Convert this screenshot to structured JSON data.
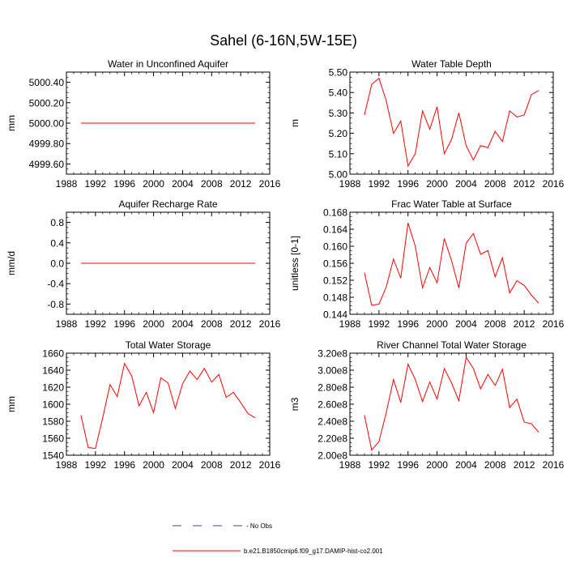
{
  "figure": {
    "title": "Sahel (6-16N,5W-15E)"
  },
  "legend": {
    "items": [
      {
        "label": "- No Obs",
        "style": "dashed",
        "color": "#4b3f8f"
      },
      {
        "label": "b.e21.B1850cmip6.f09_g17.DAMIP-hist-co2.001",
        "style": "solid",
        "color": "#ff0000"
      }
    ]
  },
  "chart_data": [
    {
      "type": "line",
      "title": "Water in Unconfined Aquifer",
      "xlabel": "",
      "ylabel": "mm",
      "xlim": [
        1988,
        2016
      ],
      "ylim": [
        4999.5,
        5000.5
      ],
      "xticks": [
        "1988",
        "1992",
        "1996",
        "2000",
        "2004",
        "2008",
        "2012",
        "2016"
      ],
      "yticks": [
        {
          "v": 5000.4,
          "label": "5000.40"
        },
        {
          "v": 5000.2,
          "label": "5000.20"
        },
        {
          "v": 5000.0,
          "label": "5000.00"
        },
        {
          "v": 4999.8,
          "label": "4999.80"
        },
        {
          "v": 4999.6,
          "label": "4999.60"
        }
      ],
      "series": [
        {
          "color": "#ff0000",
          "x": [
            1990,
            1991,
            1992,
            1993,
            1994,
            1995,
            1996,
            1997,
            1998,
            1999,
            2000,
            2001,
            2002,
            2003,
            2004,
            2005,
            2006,
            2007,
            2008,
            2009,
            2010,
            2011,
            2012,
            2013,
            2014
          ],
          "values": [
            5000,
            5000,
            5000,
            5000,
            5000,
            5000,
            5000,
            5000,
            5000,
            5000,
            5000,
            5000,
            5000,
            5000,
            5000,
            5000,
            5000,
            5000,
            5000,
            5000,
            5000,
            5000,
            5000,
            5000,
            5000
          ]
        }
      ]
    },
    {
      "type": "line",
      "title": "Water Table Depth",
      "xlabel": "",
      "ylabel": "m",
      "xlim": [
        1988,
        2016
      ],
      "ylim": [
        5.0,
        5.5
      ],
      "xticks": [
        "1988",
        "1992",
        "1996",
        "2000",
        "2004",
        "2008",
        "2012",
        "2016"
      ],
      "yticks": [
        {
          "v": 5.5,
          "label": "5.50"
        },
        {
          "v": 5.4,
          "label": "5.40"
        },
        {
          "v": 5.3,
          "label": "5.30"
        },
        {
          "v": 5.2,
          "label": "5.20"
        },
        {
          "v": 5.1,
          "label": "5.10"
        },
        {
          "v": 5.0,
          "label": "5.00"
        }
      ],
      "series": [
        {
          "color": "#ff0000",
          "x": [
            1990,
            1991,
            1992,
            1993,
            1994,
            1995,
            1996,
            1997,
            1998,
            1999,
            2000,
            2001,
            2002,
            2003,
            2004,
            2005,
            2006,
            2007,
            2008,
            2009,
            2010,
            2011,
            2012,
            2013,
            2014
          ],
          "values": [
            5.29,
            5.44,
            5.47,
            5.36,
            5.2,
            5.26,
            5.04,
            5.1,
            5.31,
            5.22,
            5.33,
            5.1,
            5.17,
            5.3,
            5.14,
            5.07,
            5.14,
            5.13,
            5.21,
            5.16,
            5.31,
            5.28,
            5.29,
            5.39,
            5.41
          ]
        }
      ]
    },
    {
      "type": "line",
      "title": "Aquifer Recharge Rate",
      "xlabel": "",
      "ylabel": "mm/d",
      "xlim": [
        1988,
        2016
      ],
      "ylim": [
        -1.0,
        1.0
      ],
      "xticks": [
        "1988",
        "1992",
        "1996",
        "2000",
        "2004",
        "2008",
        "2012",
        "2016"
      ],
      "yticks": [
        {
          "v": 0.8,
          "label": "0.8"
        },
        {
          "v": 0.4,
          "label": "0.4"
        },
        {
          "v": 0.0,
          "label": "0.0"
        },
        {
          "v": -0.4,
          "label": "-0.4"
        },
        {
          "v": -0.8,
          "label": "-0.8"
        }
      ],
      "series": [
        {
          "color": "#ff0000",
          "x": [
            1990,
            1991,
            1992,
            1993,
            1994,
            1995,
            1996,
            1997,
            1998,
            1999,
            2000,
            2001,
            2002,
            2003,
            2004,
            2005,
            2006,
            2007,
            2008,
            2009,
            2010,
            2011,
            2012,
            2013,
            2014
          ],
          "values": [
            0,
            0,
            0,
            0,
            0,
            0,
            0,
            0,
            0,
            0,
            0,
            0,
            0,
            0,
            0,
            0,
            0,
            0,
            0,
            0,
            0,
            0,
            0,
            0,
            0
          ]
        }
      ]
    },
    {
      "type": "line",
      "title": "Frac Water Table at Surface",
      "xlabel": "",
      "ylabel": "unitless [0-1]",
      "xlim": [
        1988,
        2016
      ],
      "ylim": [
        0.144,
        0.168
      ],
      "xticks": [
        "1988",
        "1992",
        "1996",
        "2000",
        "2004",
        "2008",
        "2012",
        "2016"
      ],
      "yticks": [
        {
          "v": 0.168,
          "label": "0.168"
        },
        {
          "v": 0.164,
          "label": "0.164"
        },
        {
          "v": 0.16,
          "label": "0.160"
        },
        {
          "v": 0.156,
          "label": "0.156"
        },
        {
          "v": 0.152,
          "label": "0.152"
        },
        {
          "v": 0.148,
          "label": "0.148"
        },
        {
          "v": 0.144,
          "label": "0.144"
        }
      ],
      "series": [
        {
          "color": "#ff0000",
          "x": [
            1990,
            1991,
            1992,
            1993,
            1994,
            1995,
            1996,
            1997,
            1998,
            1999,
            2000,
            2001,
            2002,
            2003,
            2004,
            2005,
            2006,
            2007,
            2008,
            2009,
            2010,
            2011,
            2012,
            2013,
            2014
          ],
          "values": [
            0.1538,
            0.1461,
            0.1464,
            0.1504,
            0.157,
            0.1525,
            0.1655,
            0.16,
            0.1502,
            0.155,
            0.1514,
            0.1618,
            0.1566,
            0.1502,
            0.1607,
            0.163,
            0.1581,
            0.159,
            0.1528,
            0.1573,
            0.149,
            0.1519,
            0.1508,
            0.1485,
            0.1466
          ]
        }
      ]
    },
    {
      "type": "line",
      "title": "Total Water Storage",
      "xlabel": "",
      "ylabel": "mm",
      "xlim": [
        1988,
        2016
      ],
      "ylim": [
        1540,
        1660
      ],
      "xticks": [
        "1988",
        "1992",
        "1996",
        "2000",
        "2004",
        "2008",
        "2012",
        "2016"
      ],
      "yticks": [
        {
          "v": 1660,
          "label": "1660"
        },
        {
          "v": 1640,
          "label": "1640"
        },
        {
          "v": 1620,
          "label": "1620"
        },
        {
          "v": 1600,
          "label": "1600"
        },
        {
          "v": 1580,
          "label": "1580"
        },
        {
          "v": 1560,
          "label": "1560"
        },
        {
          "v": 1540,
          "label": "1540"
        }
      ],
      "series": [
        {
          "color": "#ff0000",
          "x": [
            1990,
            1991,
            1992,
            1993,
            1994,
            1995,
            1996,
            1997,
            1998,
            1999,
            2000,
            2001,
            2002,
            2003,
            2004,
            2005,
            2006,
            2007,
            2008,
            2009,
            2010,
            2011,
            2012,
            2013,
            2014
          ],
          "values": [
            1587,
            1549,
            1548,
            1584,
            1623,
            1609,
            1648,
            1633,
            1598,
            1614,
            1590,
            1631,
            1625,
            1595,
            1624,
            1639,
            1629,
            1642,
            1626,
            1635,
            1608,
            1614,
            1602,
            1589,
            1584
          ]
        }
      ]
    },
    {
      "type": "line",
      "title": "River Channel Total Water Storage",
      "xlabel": "",
      "ylabel": "m3",
      "xlim": [
        1988,
        2016
      ],
      "ylim": [
        200000000.0,
        320000000.0
      ],
      "xticks": [
        "1988",
        "1992",
        "1996",
        "2000",
        "2004",
        "2008",
        "2012",
        "2016"
      ],
      "yticks": [
        {
          "v": 320000000.0,
          "label": "3.20e8"
        },
        {
          "v": 300000000.0,
          "label": "3.00e8"
        },
        {
          "v": 280000000.0,
          "label": "2.80e8"
        },
        {
          "v": 260000000.0,
          "label": "2.60e8"
        },
        {
          "v": 240000000.0,
          "label": "2.40e8"
        },
        {
          "v": 220000000.0,
          "label": "2.20e8"
        },
        {
          "v": 200000000.0,
          "label": "2.00e8"
        }
      ],
      "series": [
        {
          "color": "#ff0000",
          "x": [
            1990,
            1991,
            1992,
            1993,
            1994,
            1995,
            1996,
            1997,
            1998,
            1999,
            2000,
            2001,
            2002,
            2003,
            2004,
            2005,
            2006,
            2007,
            2008,
            2009,
            2010,
            2011,
            2012,
            2013,
            2014
          ],
          "values": [
            247000000.0,
            206000000.0,
            216000000.0,
            250000000.0,
            289000000.0,
            262000000.0,
            307000000.0,
            289000000.0,
            263000000.0,
            286000000.0,
            266000000.0,
            302000000.0,
            285000000.0,
            264000000.0,
            315000000.0,
            302000000.0,
            278000000.0,
            295000000.0,
            282000000.0,
            301000000.0,
            256000000.0,
            266000000.0,
            239000000.0,
            237000000.0,
            227000000.0
          ]
        }
      ]
    }
  ]
}
